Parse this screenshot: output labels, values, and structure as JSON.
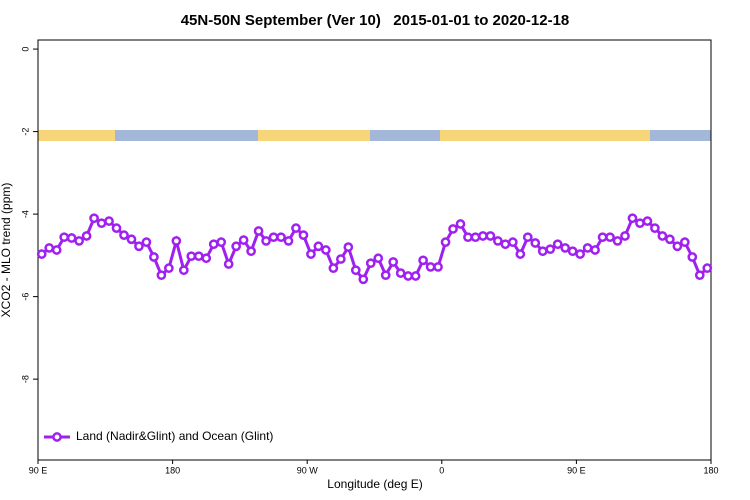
{
  "chart_data": {
    "type": "line",
    "title": "45N-50N September (Ver 10)   2015-01-01 to 2020-12-18",
    "x_label": "Longitude (deg E)",
    "y_label": "XCO2 - MLO trend (ppm)",
    "xlim": [
      90,
      540
    ],
    "xticks": [
      {
        "value": 90,
        "label": "90 E"
      },
      180,
      {
        "value": 270,
        "label": "90 W"
      },
      {
        "value": 360,
        "label": "0"
      },
      {
        "value": 450,
        "label": "90 E"
      },
      {
        "value": 540,
        "label": "180"
      }
    ],
    "ylim": [
      -9.96,
      0.22
    ],
    "yticks": [
      0,
      -2,
      -4,
      -6,
      -8
    ],
    "legend": "bottomleft",
    "x": [
      92.5,
      97.5,
      102.5,
      107.5,
      112.5,
      117.5,
      122.5,
      127.5,
      132.5,
      137.5,
      142.5,
      147.5,
      152.5,
      157.5,
      162.5,
      167.5,
      172.5,
      177.5,
      182.5,
      187.5,
      192.5,
      197.5,
      202.5,
      207.5,
      212.5,
      217.5,
      222.5,
      227.5,
      232.5,
      237.5,
      242.5,
      247.5,
      252.5,
      257.5,
      262.5,
      267.5,
      272.5,
      277.5,
      282.5,
      287.5,
      292.5,
      297.5,
      302.5,
      307.5,
      312.5,
      317.5,
      322.5,
      327.5,
      332.5,
      337.5,
      342.5,
      347.5,
      352.5,
      357.5,
      362.5,
      367.5,
      372.5,
      377.5,
      382.5,
      387.5,
      392.5,
      397.5,
      402.5,
      407.5,
      412.5,
      417.5,
      422.5,
      427.5,
      432.5,
      437.5,
      442.5,
      447.5,
      452.5,
      457.5,
      462.5,
      467.5,
      472.5,
      477.5,
      482.5,
      487.5,
      492.5,
      497.5,
      502.5,
      507.5,
      512.5,
      517.5,
      522.5,
      527.5,
      532.5,
      537.5
    ],
    "series": [
      {
        "name": "Land (Nadir&Glint) and Ocean (Glint)",
        "color": "#a020f0",
        "values": [
          -4.97,
          -4.82,
          -4.87,
          -4.56,
          -4.58,
          -4.65,
          -4.53,
          -4.1,
          -4.22,
          -4.17,
          -4.34,
          -4.51,
          -4.61,
          -4.78,
          -4.68,
          -5.04,
          -5.48,
          -5.31,
          -4.65,
          -5.36,
          -5.02,
          -5.02,
          -5.07,
          -4.73,
          -4.68,
          -5.21,
          -4.78,
          -4.63,
          -4.9,
          -4.41,
          -4.65,
          -4.56,
          -4.56,
          -4.65,
          -4.34,
          -4.51,
          -4.97,
          -4.78,
          -4.87,
          -5.31,
          -5.09,
          -4.8,
          -5.36,
          -5.58,
          -5.19,
          -5.07,
          -5.48,
          -5.16,
          -5.43,
          -5.5,
          -5.5,
          -5.12,
          -5.28,
          -5.28,
          -4.68,
          -4.36,
          -4.24,
          -4.56,
          -4.56,
          -4.53,
          -4.53,
          -4.65,
          -4.73,
          -4.68,
          -4.97,
          -4.56,
          -4.7,
          -4.9,
          -4.85,
          -4.73,
          -4.82,
          -4.9,
          -4.97,
          -4.82,
          -4.87,
          -4.56,
          -4.56,
          -4.65,
          -4.53,
          -4.1,
          -4.22,
          -4.17,
          -4.34,
          -4.53,
          -4.61,
          -4.78,
          -4.68,
          -5.04,
          -5.48,
          -5.31
        ]
      }
    ]
  }
}
